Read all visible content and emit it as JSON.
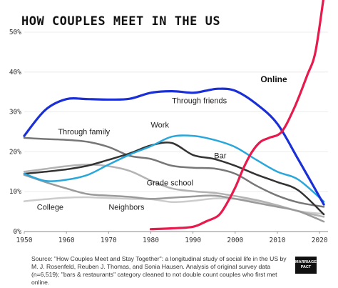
{
  "chart_data": {
    "type": "line",
    "title": "HOW COUPLES MEET IN THE US",
    "xlabel": "",
    "ylabel": "",
    "xlim": [
      1950,
      2022
    ],
    "ylim": [
      0,
      50
    ],
    "x_ticks": [
      1950,
      1960,
      1970,
      1980,
      1990,
      2000,
      2010,
      2020
    ],
    "y_ticks": [
      0,
      10,
      20,
      30,
      40,
      50
    ],
    "y_tick_labels": [
      "0%",
      "10%",
      "20%",
      "30%",
      "40%",
      "50%"
    ],
    "grid": true,
    "legend": "none",
    "series": [
      {
        "name": "Through friends",
        "color": "#1a2fd6",
        "width": 3.2,
        "x": [
          1950,
          1955,
          1960,
          1965,
          1970,
          1975,
          1980,
          1985,
          1990,
          1993,
          1996,
          2000,
          2005,
          2010,
          2015,
          2021
        ],
        "y": [
          24,
          30.5,
          33.2,
          33.2,
          33.1,
          33.3,
          34.8,
          35.2,
          34.8,
          35.3,
          35.8,
          35.3,
          32,
          27,
          18,
          6.8
        ]
      },
      {
        "name": "Through family",
        "color": "#777777",
        "width": 2.5,
        "x": [
          1950,
          1955,
          1960,
          1965,
          1970,
          1975,
          1980,
          1985,
          1990,
          1995,
          2000,
          2005,
          2010,
          2015,
          2021
        ],
        "y": [
          23.5,
          23.2,
          23,
          22.5,
          21.2,
          19,
          18.2,
          16.5,
          16,
          15.8,
          14.5,
          11.5,
          9,
          7.3,
          6.2
        ]
      },
      {
        "name": "Work",
        "color": "#2aa7da",
        "width": 2.5,
        "x": [
          1950,
          1955,
          1960,
          1965,
          1970,
          1975,
          1980,
          1985,
          1990,
          1995,
          2000,
          2005,
          2010,
          2015,
          2021
        ],
        "y": [
          14.5,
          12.7,
          13,
          14.2,
          16.8,
          19.3,
          21.4,
          23.8,
          24,
          23,
          21.2,
          18,
          15,
          13,
          7.5
        ]
      },
      {
        "name": "Bar",
        "color": "#333333",
        "width": 2.5,
        "x": [
          1950,
          1955,
          1960,
          1965,
          1970,
          1975,
          1980,
          1985,
          1990,
          1995,
          2000,
          2005,
          2010,
          2015,
          2021
        ],
        "y": [
          14.5,
          15,
          15.6,
          16.5,
          18,
          19.6,
          21.6,
          22.2,
          19.2,
          18.2,
          16.5,
          14.3,
          12.4,
          10.3,
          4.3
        ]
      },
      {
        "name": "Grade school",
        "color": "#b3b3b3",
        "width": 2.5,
        "x": [
          1950,
          1955,
          1960,
          1965,
          1970,
          1975,
          1980,
          1985,
          1990,
          1995,
          2000,
          2005,
          2010,
          2015,
          2021
        ],
        "y": [
          15,
          15.7,
          16.4,
          16.8,
          16.4,
          15.2,
          12.8,
          10.8,
          10.1,
          9.7,
          8.9,
          7.9,
          6.6,
          5.1,
          3.7
        ]
      },
      {
        "name": "College",
        "color": "#cccccc",
        "width": 2.5,
        "x": [
          1950,
          1955,
          1960,
          1965,
          1970,
          1975,
          1980,
          1985,
          1990,
          1995,
          2000,
          2005,
          2010,
          2015,
          2021
        ],
        "y": [
          7.6,
          8.1,
          8.5,
          8.6,
          8.4,
          8.2,
          8.1,
          7.4,
          7.7,
          8.3,
          8.2,
          7.7,
          6.5,
          5.1,
          4.4
        ]
      },
      {
        "name": "Neighbors",
        "color": "#9a9a9a",
        "width": 2.5,
        "x": [
          1950,
          1955,
          1960,
          1965,
          1970,
          1975,
          1980,
          1985,
          1990,
          1995,
          2000,
          2005,
          2010,
          2015,
          2021
        ],
        "y": [
          14.2,
          12.4,
          10.8,
          9.4,
          9,
          8.7,
          8.2,
          8.5,
          8.8,
          9,
          8.2,
          7.2,
          6.2,
          5.1,
          2.5
        ]
      },
      {
        "name": "Online",
        "color": "#e8194c",
        "width": 3.2,
        "x": [
          1980,
          1985,
          1990,
          1993,
          1996,
          1998,
          2000,
          2002,
          2004,
          2006,
          2008,
          2011,
          2014,
          2017,
          2019,
          2021
        ],
        "y": [
          0.6,
          0.8,
          1.2,
          2.5,
          4,
          7,
          11,
          16,
          20,
          22.5,
          23.5,
          25,
          31,
          39,
          45,
          59
        ]
      }
    ],
    "annotations": [
      {
        "text": "Through friends",
        "series": "Through friends",
        "x": 1985,
        "y": 32.2,
        "bold": false
      },
      {
        "text": "Through family",
        "series": "Through family",
        "x": 1958,
        "y": 24.4,
        "bold": false
      },
      {
        "text": "Work",
        "series": "Work",
        "x": 1980,
        "y": 26.1,
        "bold": false
      },
      {
        "text": "Bar",
        "series": "Bar",
        "x": 1995,
        "y": 18.4,
        "bold": false
      },
      {
        "text": "Grade school",
        "series": "Grade school",
        "x": 1979,
        "y": 11.6,
        "bold": false
      },
      {
        "text": "College",
        "series": "College",
        "x": 1953,
        "y": 5.5,
        "bold": false
      },
      {
        "text": "Neighbors",
        "series": "Neighbors",
        "x": 1970,
        "y": 5.5,
        "bold": false
      },
      {
        "text": "Online",
        "series": "Online",
        "x": 2006,
        "y": 37.5,
        "bold": true
      }
    ]
  },
  "source_note": "Source: \"How Couples Meet and Stay Together\": a longitudinal study of social life in the US by M. J. Rosenfeld, Reuben J. Thomas, and Sonia Hausen. Analysis of original survey data (n=6,519); \"bars & restaurants\" category cleaned to not double count couples who first met online.",
  "logo": {
    "line1": "MARRIAGE",
    "line2": "PACT"
  }
}
